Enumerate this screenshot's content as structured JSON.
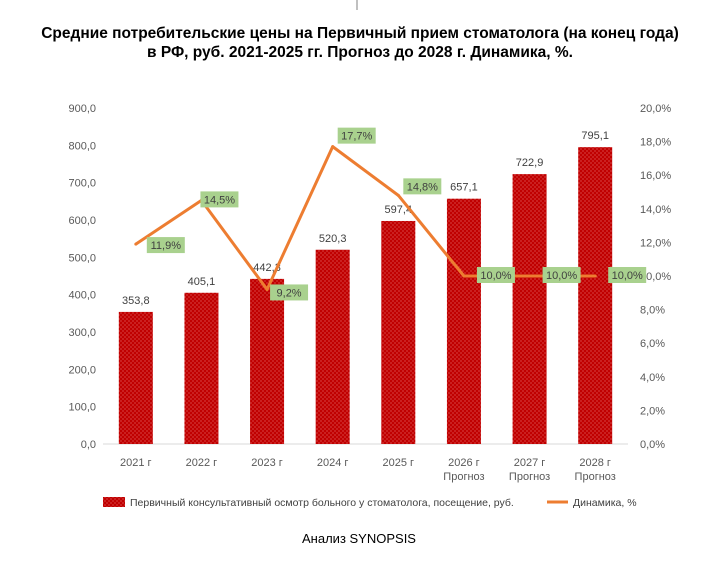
{
  "title": "Средние потребительские цены на Первичный прием стоматолога (на конец года) в РФ, руб. 2021-2025 гг. Прогноз до 2028 г. Динамика, %.",
  "source": "Анализ SYNOPSIS",
  "chart_data": {
    "type": "bar",
    "categories": [
      [
        "2021 г"
      ],
      [
        "2022 г"
      ],
      [
        "2023 г"
      ],
      [
        "2024 г"
      ],
      [
        "2025 г"
      ],
      [
        "2026 г",
        "Прогноз"
      ],
      [
        "2027 г",
        "Прогноз"
      ],
      [
        "2028 г",
        "Прогноз"
      ]
    ],
    "series": [
      {
        "name": "Первичный консультативный осмотр больного у стоматолога, посещение, руб.",
        "type": "bar",
        "axis": "left",
        "values": [
          353.8,
          405.1,
          442.3,
          520.3,
          597.4,
          657.1,
          722.9,
          795.1
        ],
        "labels": [
          "353,8",
          "405,1",
          "442,3",
          "520,3",
          "597,4",
          "657,1",
          "722,9",
          "795,1"
        ],
        "color": "#c00000"
      },
      {
        "name": "Динамика, %",
        "type": "line",
        "axis": "right",
        "values": [
          11.9,
          14.5,
          9.2,
          17.7,
          14.8,
          10.0,
          10.0,
          10.0
        ],
        "labels": [
          "11,9%",
          "14,5%",
          "9,2%",
          "17,7%",
          "14,8%",
          "10,0%",
          "10,0%",
          "10,0%"
        ],
        "color": "#ed7d31",
        "label_bg": "#a9d18e"
      }
    ],
    "y_left": {
      "min": 0,
      "max": 900,
      "step": 100,
      "ticks": [
        "0,0",
        "100,0",
        "200,0",
        "300,0",
        "400,0",
        "500,0",
        "600,0",
        "700,0",
        "800,0",
        "900,0"
      ]
    },
    "y_right": {
      "min": 0,
      "max": 20,
      "step": 2,
      "ticks": [
        "0,0%",
        "2,0%",
        "4,0%",
        "6,0%",
        "8,0%",
        "10,0%",
        "12,0%",
        "14,0%",
        "16,0%",
        "18,0%",
        "20,0%"
      ]
    },
    "grid": false,
    "legend": "bottom"
  }
}
